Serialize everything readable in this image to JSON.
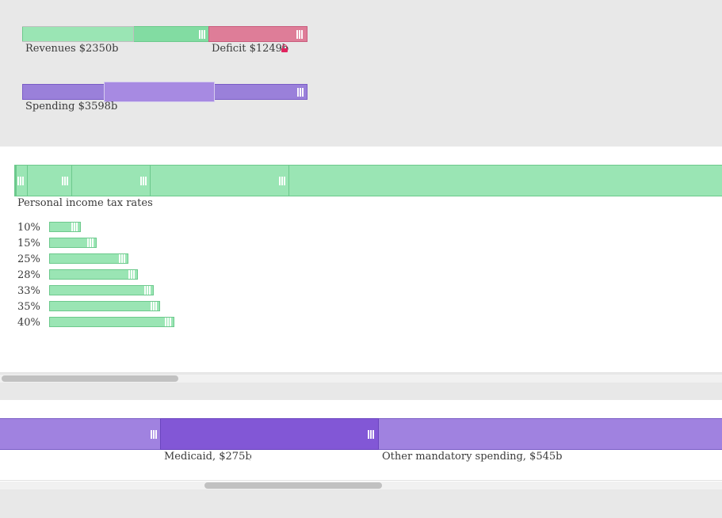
{
  "summary": {
    "revenues_label": "Revenues $2350b",
    "deficit_label": "Deficit $1249b",
    "spending_label": "Spending $3598b"
  },
  "revenues": {
    "title": "Personal income tax rates",
    "rates": [
      {
        "label": "10%"
      },
      {
        "label": "15%"
      },
      {
        "label": "25%"
      },
      {
        "label": "28%"
      },
      {
        "label": "33%"
      },
      {
        "label": "35%"
      },
      {
        "label": "40%"
      }
    ]
  },
  "spending": {
    "medicaid_label": "Medicaid, $275b",
    "other_label": "Other mandatory spending, $545b"
  },
  "colors": {
    "revenue": "#9ae5b4",
    "deficit": "#de7d98",
    "spending": "#9a80da",
    "medicaid_selected": "#8257d6"
  }
}
